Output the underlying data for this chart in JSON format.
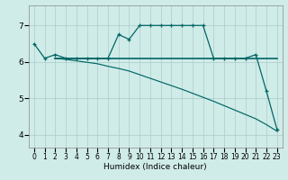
{
  "xlabel": "Humidex (Indice chaleur)",
  "bg_color": "#d0ece8",
  "grid_color": "#aacccc",
  "line_color": "#006666",
  "xlim": [
    -0.5,
    23.5
  ],
  "ylim": [
    3.65,
    7.55
  ],
  "yticks": [
    4,
    5,
    6,
    7
  ],
  "xticks": [
    0,
    1,
    2,
    3,
    4,
    5,
    6,
    7,
    8,
    9,
    10,
    11,
    12,
    13,
    14,
    15,
    16,
    17,
    18,
    19,
    20,
    21,
    22,
    23
  ],
  "curve_main_x": [
    0,
    1,
    2,
    3,
    4,
    5,
    6,
    7,
    8,
    9,
    10,
    11,
    12,
    13,
    14,
    15,
    16,
    17,
    18,
    19,
    20,
    21,
    22,
    23
  ],
  "curve_main_y": [
    6.5,
    6.1,
    6.2,
    6.1,
    6.1,
    6.1,
    6.1,
    6.1,
    6.75,
    6.62,
    7.0,
    7.0,
    7.0,
    7.0,
    7.0,
    7.0,
    7.0,
    6.1,
    6.1,
    6.1,
    6.1,
    6.2,
    5.2,
    4.15
  ],
  "curve_flat_x": [
    2,
    3,
    4,
    5,
    6,
    7,
    8,
    9,
    10,
    11,
    12,
    13,
    14,
    15,
    16,
    17,
    18,
    19,
    20,
    21,
    22,
    23
  ],
  "curve_flat_y": [
    6.1,
    6.1,
    6.1,
    6.1,
    6.1,
    6.1,
    6.1,
    6.1,
    6.1,
    6.1,
    6.1,
    6.1,
    6.1,
    6.1,
    6.1,
    6.1,
    6.1,
    6.1,
    6.1,
    6.1,
    6.1,
    6.1
  ],
  "curve_diag_x": [
    2,
    3,
    4,
    5,
    6,
    7,
    8,
    9,
    10,
    11,
    12,
    13,
    14,
    15,
    16,
    17,
    18,
    19,
    20,
    21,
    22,
    23
  ],
  "curve_diag_y": [
    6.1,
    6.07,
    6.03,
    5.99,
    5.95,
    5.88,
    5.82,
    5.75,
    5.65,
    5.55,
    5.45,
    5.35,
    5.25,
    5.14,
    5.03,
    4.92,
    4.8,
    4.68,
    4.56,
    4.44,
    4.28,
    4.1
  ],
  "xlabel_fontsize": 6.5,
  "tick_fontsize_x": 5.5,
  "tick_fontsize_y": 6.5
}
